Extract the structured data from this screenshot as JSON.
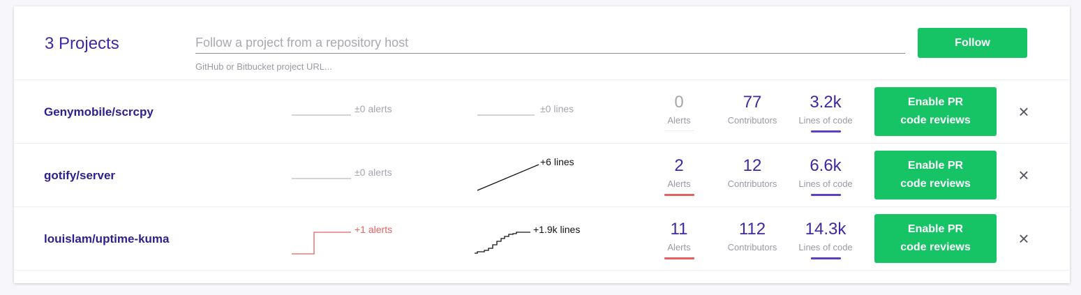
{
  "header": {
    "project_count": "3 Projects",
    "search_placeholder": "Follow a project from a repository host",
    "search_hint": "GitHub or Bitbucket project URL...",
    "follow_label": "Follow"
  },
  "projects": [
    {
      "name": "Genymobile/scrcpy",
      "alerts_change": "±0 alerts",
      "lines_change": "±0 lines",
      "alerts": "0",
      "alerts_label": "Alerts",
      "contributors": "77",
      "contributors_label": "Contributors",
      "loc": "3.2k",
      "loc_label": "Lines of code",
      "enable_label": "Enable PR\ncode reviews",
      "remove_icon": "×"
    },
    {
      "name": "gotify/server",
      "alerts_change": "±0 alerts",
      "lines_change": "+6 lines",
      "alerts": "2",
      "alerts_label": "Alerts",
      "contributors": "12",
      "contributors_label": "Contributors",
      "loc": "6.6k",
      "loc_label": "Lines of code",
      "enable_label": "Enable PR\ncode reviews",
      "remove_icon": "×"
    },
    {
      "name": "louislam/uptime-kuma",
      "alerts_change": "+1 alerts",
      "lines_change": "+1.9k lines",
      "alerts": "11",
      "alerts_label": "Alerts",
      "contributors": "112",
      "contributors_label": "Contributors",
      "loc": "14.3k",
      "loc_label": "Lines of code",
      "enable_label": "Enable PR\ncode reviews",
      "remove_icon": "×"
    }
  ],
  "colors": {
    "accent_green": "#16c466",
    "brand_purple": "#3b2aa4",
    "alert_red": "#e5605f"
  }
}
